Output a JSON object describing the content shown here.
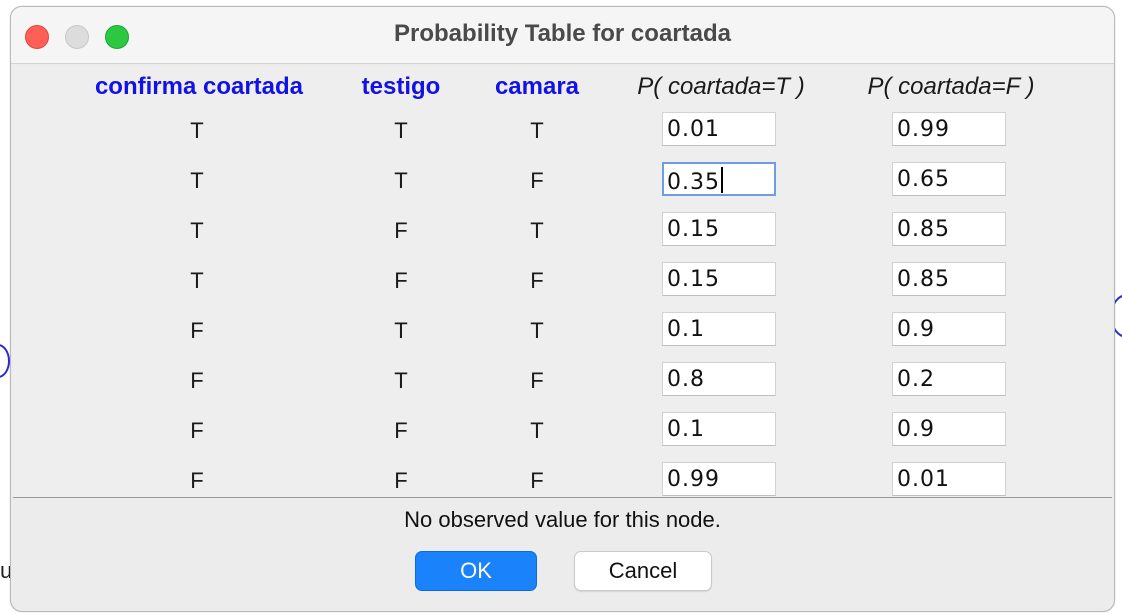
{
  "window": {
    "title": "Probability Table for coartada"
  },
  "table": {
    "headers": [
      "confirma coartada",
      "testigo",
      "camara",
      "P( coartada=T )",
      "P( coartada=F )"
    ],
    "rows": [
      {
        "confirma_coartada": "T",
        "testigo": "T",
        "camara": "T",
        "p_true": "0.01",
        "p_false": "0.99"
      },
      {
        "confirma_coartada": "T",
        "testigo": "T",
        "camara": "F",
        "p_true": "0.35",
        "p_false": "0.65"
      },
      {
        "confirma_coartada": "T",
        "testigo": "F",
        "camara": "T",
        "p_true": "0.15",
        "p_false": "0.85"
      },
      {
        "confirma_coartada": "T",
        "testigo": "F",
        "camara": "F",
        "p_true": "0.15",
        "p_false": "0.85"
      },
      {
        "confirma_coartada": "F",
        "testigo": "T",
        "camara": "T",
        "p_true": "0.1",
        "p_false": "0.9"
      },
      {
        "confirma_coartada": "F",
        "testigo": "T",
        "camara": "F",
        "p_true": "0.8",
        "p_false": "0.2"
      },
      {
        "confirma_coartada": "F",
        "testigo": "F",
        "camara": "T",
        "p_true": "0.1",
        "p_false": "0.9"
      },
      {
        "confirma_coartada": "F",
        "testigo": "F",
        "camara": "F",
        "p_true": "0.99",
        "p_false": "0.01"
      }
    ],
    "focused_cell": "rows.1.p_true"
  },
  "status": {
    "text": "No observed value for this node."
  },
  "buttons": {
    "ok_label": "OK",
    "cancel_label": "Cancel"
  },
  "background": {
    "fragment_text": "u"
  },
  "colors": {
    "header_blue": "#1212e6",
    "ok_button": "#1a82fb",
    "close": "#fe5f57",
    "maximize": "#2bc840"
  }
}
